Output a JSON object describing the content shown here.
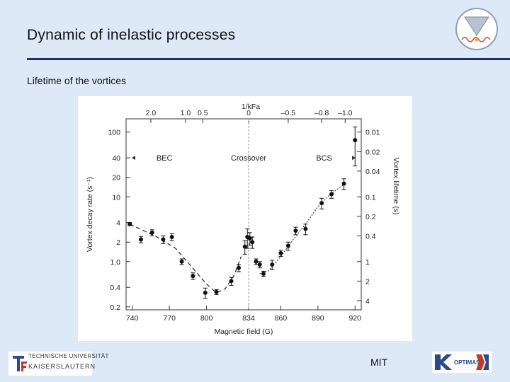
{
  "slide": {
    "title": "Dynamic of inelastic processes",
    "subtitle": "Lifetime of the vortices",
    "footer_center": "MIT"
  },
  "logos": {
    "tu_line1": "TECHNISCHE UNIVERSITÄT",
    "tu_line2": "KAISERSLAUTERN",
    "optimas": "OPTIMAS"
  },
  "colors": {
    "background": "#dde9f7",
    "rule": "#1f2f74",
    "marker": "#111111"
  },
  "chart_data": {
    "type": "scatter",
    "xlabel": "Magnetic field (G)",
    "ylabel": "Vortex decay rate (s⁻¹)",
    "y2label": "Vortex lifetime (s)",
    "top_axis_label": "1/kFa",
    "x_ticks": [
      "740",
      "770",
      "800",
      "834",
      "860",
      "890",
      "920"
    ],
    "x_tick_values": [
      740,
      770,
      800,
      834,
      860,
      890,
      920
    ],
    "xlim": [
      735,
      925
    ],
    "y_scale": "log",
    "ylim": [
      0.18,
      160
    ],
    "y_ticks": [
      "100",
      "40",
      "20",
      "10",
      "4",
      "2",
      "1.0",
      "0.4",
      "0.2"
    ],
    "y_tick_values": [
      100,
      40,
      20,
      10,
      4,
      2,
      1.0,
      0.4,
      0.2
    ],
    "top_ticks": [
      "2.0",
      "1.0",
      "0.5",
      "0",
      "–0.5",
      "–0.8",
      "–1.0"
    ],
    "top_tick_fields": [
      755,
      783,
      797,
      834,
      866,
      893,
      912
    ],
    "right_ticks": [
      "0.01",
      "0.02",
      "0.04",
      "0.1",
      "0.2",
      "0.4",
      "1",
      "2",
      "4"
    ],
    "right_tick_values": [
      0.01,
      0.02,
      0.04,
      0.1,
      0.2,
      0.4,
      1,
      2,
      4
    ],
    "annotations": [
      {
        "text": "BEC",
        "x": 766,
        "y": 40
      },
      {
        "text": "Crossover",
        "x": 834,
        "y": 40
      },
      {
        "text": "BCS",
        "x": 895,
        "y": 40
      }
    ],
    "crossover_line_x": 834,
    "points": [
      {
        "x": 738,
        "y": 3.8,
        "err": 0.2
      },
      {
        "x": 747,
        "y": 2.2,
        "err": 0.25
      },
      {
        "x": 756,
        "y": 2.8,
        "err": 0.3
      },
      {
        "x": 765,
        "y": 2.2,
        "err": 0.3
      },
      {
        "x": 772,
        "y": 2.4,
        "err": 0.3
      },
      {
        "x": 780,
        "y": 1.0,
        "err": 0.1
      },
      {
        "x": 789,
        "y": 0.6,
        "err": 0.07
      },
      {
        "x": 799,
        "y": 0.33,
        "err": 0.06
      },
      {
        "x": 808,
        "y": 0.34,
        "err": 0.03
      },
      {
        "x": 820,
        "y": 0.5,
        "err": 0.07
      },
      {
        "x": 826,
        "y": 0.8,
        "err": 0.1
      },
      {
        "x": 831,
        "y": 1.7,
        "err": 0.4
      },
      {
        "x": 833,
        "y": 2.4,
        "err": 0.8
      },
      {
        "x": 835,
        "y": 2.3,
        "err": 0.5
      },
      {
        "x": 837,
        "y": 2.0,
        "err": 0.4
      },
      {
        "x": 840,
        "y": 1.0,
        "err": 0.1
      },
      {
        "x": 843,
        "y": 0.9,
        "err": 0.1
      },
      {
        "x": 846,
        "y": 0.65,
        "err": 0.06
      },
      {
        "x": 853,
        "y": 0.9,
        "err": 0.15
      },
      {
        "x": 860,
        "y": 1.35,
        "err": 0.15
      },
      {
        "x": 866,
        "y": 1.75,
        "err": 0.25
      },
      {
        "x": 872,
        "y": 3.0,
        "err": 0.4
      },
      {
        "x": 880,
        "y": 3.2,
        "err": 0.6
      },
      {
        "x": 893,
        "y": 8.0,
        "err": 1.5
      },
      {
        "x": 901,
        "y": 11.0,
        "err": 1.5
      },
      {
        "x": 911,
        "y": 16.0,
        "err": 3.0
      },
      {
        "x": 920,
        "y": 75,
        "err": 45
      }
    ],
    "curve_bec": [
      [
        738,
        3.8
      ],
      [
        760,
        2.4
      ],
      [
        775,
        1.6
      ],
      [
        790,
        0.75
      ],
      [
        800,
        0.45
      ],
      [
        808,
        0.33
      ],
      [
        815,
        0.38
      ],
      [
        822,
        0.6
      ],
      [
        828,
        1.2
      ]
    ],
    "curve_bcs": [
      [
        843,
        0.65
      ],
      [
        850,
        0.72
      ],
      [
        860,
        1.2
      ],
      [
        870,
        2.2
      ],
      [
        880,
        3.8
      ],
      [
        890,
        7
      ],
      [
        900,
        11
      ],
      [
        912,
        16
      ]
    ]
  }
}
